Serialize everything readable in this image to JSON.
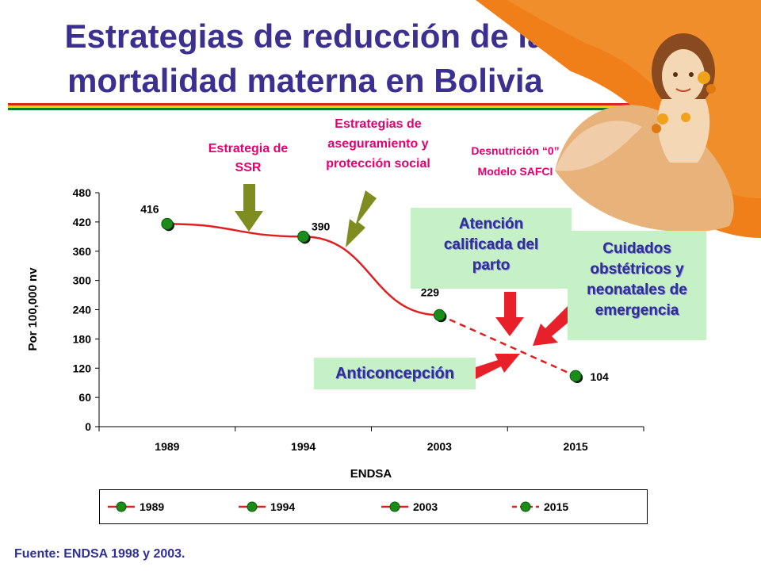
{
  "slide": {
    "title_line1": "Estrategias de reducción de la",
    "title_line2": "mortalidad materna en Bolivia",
    "source": "Fuente: ENDSA 1998 y 2003."
  },
  "annotations": {
    "ssr": [
      "Estrategia de",
      "SSR"
    ],
    "aseguramiento": [
      "Estrategias de",
      "aseguramiento y",
      "protección social"
    ],
    "desnutricion": [
      "Desnutrición “0”",
      "Modelo SAFCI"
    ],
    "atencion": [
      "Atención",
      "calificada del",
      "parto"
    ],
    "cuidados": [
      "Cuidados",
      "obstétricos y",
      "neonatales de",
      "emergencia"
    ],
    "anticoncepcion": "Anticoncepción"
  },
  "colors": {
    "title": "#3b2f8f",
    "line": "#e02020",
    "marker": "#1a8c1a",
    "arrow_olive": "#7f8c1f",
    "arrow_red": "#e8202a",
    "callout_green": "#c6f0c6",
    "magenta_text": "#e4006f",
    "decor_orange": "#f07f1a"
  },
  "chart_data": {
    "type": "line",
    "categories": [
      "1989",
      "1994",
      "2003",
      "2015"
    ],
    "values": [
      416,
      390,
      229,
      104
    ],
    "data_labels": [
      "416",
      "390",
      "229",
      "104"
    ],
    "projected_from_index": 2,
    "xlabel": "ENDSA",
    "ylabel": "Por 100,000 nv",
    "ylim": [
      0,
      480
    ],
    "yticks": [
      0,
      60,
      120,
      180,
      240,
      300,
      360,
      420,
      480
    ],
    "grid": false,
    "legend_position": "bottom",
    "legend": [
      "1989",
      "1994",
      "2003",
      "2015"
    ]
  }
}
